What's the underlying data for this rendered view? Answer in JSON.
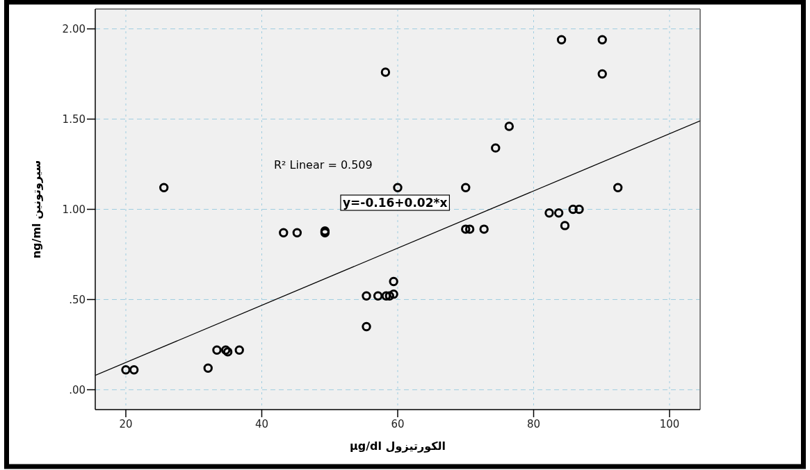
{
  "chart_data": {
    "type": "scatter",
    "xlabel": "µg/dl الكورتيزول",
    "ylabel": "ng/ml سيروتونين",
    "annotations": [
      "R² Linear = 0.509",
      "y=-0.16+0.02*x"
    ],
    "xlim": [
      15.5,
      104.5
    ],
    "xticks": [
      20,
      40,
      60,
      80,
      100
    ],
    "ylim": [
      -0.11,
      2.11
    ],
    "yticks": [
      {
        "value": 0,
        "label": ".00"
      },
      {
        "value": 0.5,
        "label": ".50"
      },
      {
        "value": 1,
        "label": "1.00"
      },
      {
        "value": 1.5,
        "label": "1.50"
      },
      {
        "value": 2,
        "label": "2.00"
      }
    ],
    "grid": true,
    "series": [
      {
        "color": "#000000",
        "marker": "circle",
        "x": [
          20.0,
          21.2,
          25.6,
          32.1,
          33.4,
          34.7,
          35.0,
          36.7,
          43.2,
          45.2,
          49.3,
          49.3,
          55.4,
          55.4,
          57.1,
          58.3,
          58.8,
          59.4,
          59.4,
          58.2,
          60.0,
          70.0,
          70.0,
          70.6,
          72.7,
          74.4,
          76.4,
          82.3,
          83.7,
          84.1,
          84.6,
          85.8,
          86.7,
          90.1,
          90.1,
          92.4
        ],
        "values": [
          0.11,
          0.11,
          1.12,
          0.12,
          0.22,
          0.22,
          0.21,
          0.22,
          0.87,
          0.87,
          0.88,
          0.87,
          0.52,
          0.35,
          0.52,
          0.52,
          0.52,
          0.53,
          0.6,
          1.76,
          1.12,
          1.12,
          0.89,
          0.89,
          0.89,
          1.34,
          1.46,
          0.98,
          0.98,
          1.94,
          0.91,
          1.0,
          1.0,
          1.94,
          1.75,
          1.12
        ]
      },
      {
        "type": "line",
        "color": "#000000",
        "x": [
          15.5,
          104.5
        ],
        "values": [
          0.08,
          1.49
        ]
      }
    ]
  }
}
